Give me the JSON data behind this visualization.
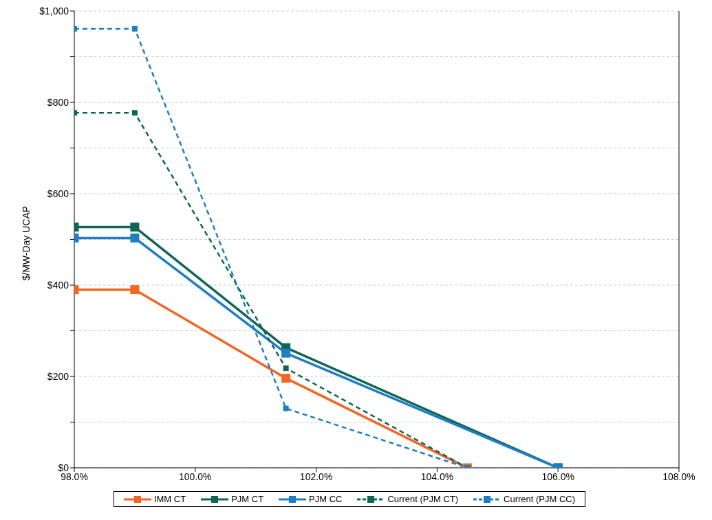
{
  "chart_data": {
    "type": "line",
    "ylabel": "$/MW-Day UCAP",
    "xlim": [
      98,
      108
    ],
    "ylim": [
      0,
      1000
    ],
    "xticks": [
      {
        "value": 98,
        "label": "98.0%"
      },
      {
        "value": 100,
        "label": "100.0%"
      },
      {
        "value": 102,
        "label": "102.0%"
      },
      {
        "value": 104,
        "label": "104.0%"
      },
      {
        "value": 106,
        "label": "106.0%"
      },
      {
        "value": 108,
        "label": "108.0%"
      }
    ],
    "yticks": [
      {
        "value": 0,
        "label": "$0"
      },
      {
        "value": 100,
        "label": null
      },
      {
        "value": 200,
        "label": "$200"
      },
      {
        "value": 300,
        "label": null
      },
      {
        "value": 400,
        "label": "$400"
      },
      {
        "value": 500,
        "label": null
      },
      {
        "value": 600,
        "label": "$600"
      },
      {
        "value": 700,
        "label": null
      },
      {
        "value": 800,
        "label": "$800"
      },
      {
        "value": 900,
        "label": null
      },
      {
        "value": 1000,
        "label": "$1,000"
      }
    ],
    "grid": "y",
    "legend": "bottom",
    "marker": "square",
    "series": [
      {
        "name": "IMM CT",
        "color": "#f26522",
        "line_style": "solid",
        "x": [
          98,
          99,
          101.5,
          104.5
        ],
        "values": [
          390,
          390,
          196,
          0
        ]
      },
      {
        "name": "PJM CT",
        "color": "#0e6655",
        "line_style": "solid",
        "x": [
          98,
          99,
          101.5,
          106
        ],
        "values": [
          527,
          527,
          263,
          0
        ]
      },
      {
        "name": "PJM CC",
        "color": "#1f7dc4",
        "line_style": "solid",
        "x": [
          98,
          99,
          101.5,
          106
        ],
        "values": [
          503,
          503,
          251,
          0
        ]
      },
      {
        "name": "Current (PJM CT)",
        "color": "#0e6655",
        "line_style": "dashed",
        "x": [
          98,
          99,
          101.5,
          104.5
        ],
        "values": [
          777,
          777,
          218,
          0
        ]
      },
      {
        "name": "Current (PJM CC)",
        "color": "#1f7dc4",
        "line_style": "dashed",
        "x": [
          98,
          99,
          101.5,
          104.5
        ],
        "values": [
          961,
          961,
          130,
          0
        ]
      }
    ]
  }
}
